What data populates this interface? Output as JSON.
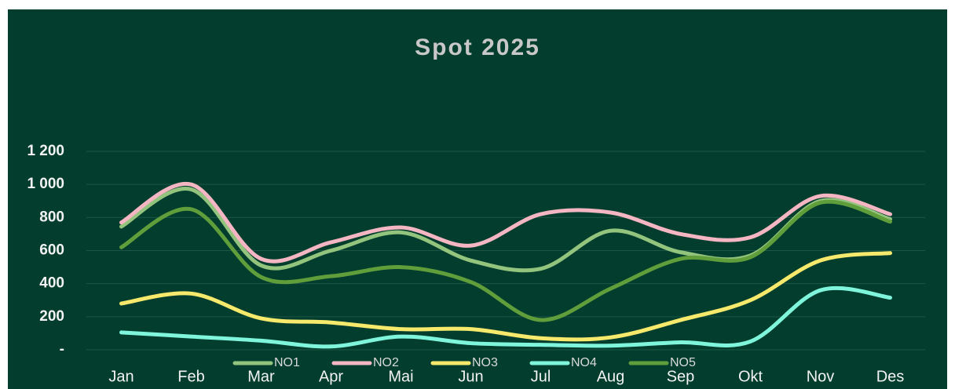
{
  "chart_data": {
    "type": "line",
    "title": "Spot 2025",
    "categories": [
      "Jan",
      "Feb",
      "Mar",
      "Apr",
      "Mai",
      "Jun",
      "Jul",
      "Aug",
      "Sep",
      "Okt",
      "Nov",
      "Des"
    ],
    "series": [
      {
        "name": "NO1",
        "color": "#93c47d",
        "values": [
          745,
          970,
          510,
          600,
          710,
          540,
          490,
          720,
          590,
          570,
          900,
          790
        ]
      },
      {
        "name": "NO2",
        "color": "#f4b6c2",
        "values": [
          770,
          1000,
          550,
          650,
          740,
          630,
          820,
          830,
          700,
          680,
          930,
          820
        ]
      },
      {
        "name": "NO3",
        "color": "#f7e96b",
        "values": [
          280,
          340,
          190,
          165,
          125,
          125,
          70,
          75,
          180,
          300,
          540,
          585
        ]
      },
      {
        "name": "NO4",
        "color": "#7ff5dc",
        "values": [
          105,
          80,
          55,
          20,
          80,
          40,
          30,
          25,
          45,
          50,
          360,
          315
        ]
      },
      {
        "name": "NO5",
        "color": "#5f9e3a",
        "values": [
          620,
          850,
          440,
          445,
          500,
          410,
          180,
          370,
          550,
          560,
          890,
          775
        ]
      }
    ],
    "ylim": [
      0,
      1200
    ],
    "yticks": [
      {
        "value": 0,
        "label": "-"
      },
      200,
      400,
      600,
      800,
      {
        "value": 1000,
        "label": "1 000"
      },
      {
        "value": 1200,
        "label": "1 200"
      }
    ],
    "grid": true,
    "legend": "bottom"
  }
}
